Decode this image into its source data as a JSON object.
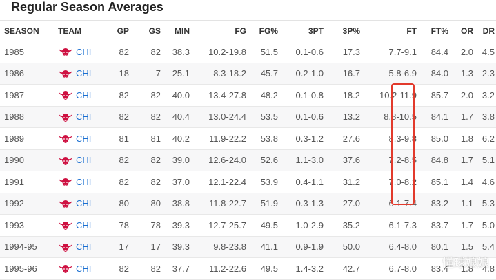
{
  "title": "Regular Season Averages",
  "columns": [
    "SEASON",
    "TEAM",
    "GP",
    "GS",
    "MIN",
    "FG",
    "FG%",
    "3PT",
    "3P%",
    "FT",
    "FT%",
    "OR",
    "DR"
  ],
  "rows": [
    {
      "season": "1985",
      "team": "CHI",
      "gp": "82",
      "gs": "82",
      "min": "38.3",
      "fg": "10.2-19.8",
      "fgp": "51.5",
      "tpt": "0.1-0.6",
      "tpp": "17.3",
      "ft": "7.7-9.1",
      "ftp": "84.4",
      "or": "2.0",
      "dr": "4.5"
    },
    {
      "season": "1986",
      "team": "CHI",
      "gp": "18",
      "gs": "7",
      "min": "25.1",
      "fg": "8.3-18.2",
      "fgp": "45.7",
      "tpt": "0.2-1.0",
      "tpp": "16.7",
      "ft": "5.8-6.9",
      "ftp": "84.0",
      "or": "1.3",
      "dr": "2.3"
    },
    {
      "season": "1987",
      "team": "CHI",
      "gp": "82",
      "gs": "82",
      "min": "40.0",
      "fg": "13.4-27.8",
      "fgp": "48.2",
      "tpt": "0.1-0.8",
      "tpp": "18.2",
      "ft": "10.2-11.9",
      "ftp": "85.7",
      "or": "2.0",
      "dr": "3.2"
    },
    {
      "season": "1988",
      "team": "CHI",
      "gp": "82",
      "gs": "82",
      "min": "40.4",
      "fg": "13.0-24.4",
      "fgp": "53.5",
      "tpt": "0.1-0.6",
      "tpp": "13.2",
      "ft": "8.8-10.5",
      "ftp": "84.1",
      "or": "1.7",
      "dr": "3.8"
    },
    {
      "season": "1989",
      "team": "CHI",
      "gp": "81",
      "gs": "81",
      "min": "40.2",
      "fg": "11.9-22.2",
      "fgp": "53.8",
      "tpt": "0.3-1.2",
      "tpp": "27.6",
      "ft": "8.3-9.8",
      "ftp": "85.0",
      "or": "1.8",
      "dr": "6.2"
    },
    {
      "season": "1990",
      "team": "CHI",
      "gp": "82",
      "gs": "82",
      "min": "39.0",
      "fg": "12.6-24.0",
      "fgp": "52.6",
      "tpt": "1.1-3.0",
      "tpp": "37.6",
      "ft": "7.2-8.5",
      "ftp": "84.8",
      "or": "1.7",
      "dr": "5.1"
    },
    {
      "season": "1991",
      "team": "CHI",
      "gp": "82",
      "gs": "82",
      "min": "37.0",
      "fg": "12.1-22.4",
      "fgp": "53.9",
      "tpt": "0.4-1.1",
      "tpp": "31.2",
      "ft": "7.0-8.2",
      "ftp": "85.1",
      "or": "1.4",
      "dr": "4.6"
    },
    {
      "season": "1992",
      "team": "CHI",
      "gp": "80",
      "gs": "80",
      "min": "38.8",
      "fg": "11.8-22.7",
      "fgp": "51.9",
      "tpt": "0.3-1.3",
      "tpp": "27.0",
      "ft": "6.1-7.4",
      "ftp": "83.2",
      "or": "1.1",
      "dr": "5.3"
    },
    {
      "season": "1993",
      "team": "CHI",
      "gp": "78",
      "gs": "78",
      "min": "39.3",
      "fg": "12.7-25.7",
      "fgp": "49.5",
      "tpt": "1.0-2.9",
      "tpp": "35.2",
      "ft": "6.1-7.3",
      "ftp": "83.7",
      "or": "1.7",
      "dr": "5.0"
    },
    {
      "season": "1994-95",
      "team": "CHI",
      "gp": "17",
      "gs": "17",
      "min": "39.3",
      "fg": "9.8-23.8",
      "fgp": "41.1",
      "tpt": "0.9-1.9",
      "tpp": "50.0",
      "ft": "6.4-8.0",
      "ftp": "80.1",
      "or": "1.5",
      "dr": "5.4"
    },
    {
      "season": "1995-96",
      "team": "CHI",
      "gp": "82",
      "gs": "82",
      "min": "37.7",
      "fg": "11.2-22.6",
      "fgp": "49.5",
      "tpt": "1.4-3.2",
      "tpp": "42.7",
      "ft": "6.7-8.0",
      "ftp": "83.4",
      "or": "1.8",
      "dr": "4.8"
    }
  ],
  "watermark": "懂球娘娘",
  "colors": {
    "link": "#1a6fd1",
    "highlight": "#e23a2c",
    "logo": "#ce1141"
  }
}
